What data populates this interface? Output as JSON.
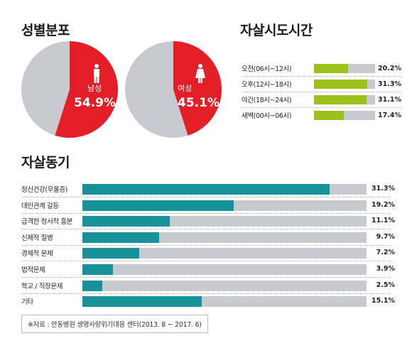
{
  "titles": {
    "gender": "성별분포",
    "time": "자살시도시간",
    "motive": "자살동기"
  },
  "colors": {
    "pie_highlight": "#e41e26",
    "pie_rest": "#c9c9d0",
    "time_bar": "#9bc21a",
    "motive_bar": "#17919a",
    "track": "#c9c9d0"
  },
  "chart_data": [
    {
      "type": "pie",
      "title": "성별분포",
      "slices": [
        {
          "label": "남성",
          "value": 54.9,
          "value_label": "54.9%",
          "icon": "male-person-icon"
        },
        {
          "label": "",
          "value": 45.1
        }
      ]
    },
    {
      "type": "pie",
      "slices": [
        {
          "label": "여성",
          "value": 45.1,
          "value_label": "45.1%",
          "icon": "female-person-icon"
        },
        {
          "label": "",
          "value": 54.9
        }
      ]
    },
    {
      "type": "bar",
      "orientation": "horizontal",
      "title": "자살시도시간",
      "categories": [
        "오전(06시~12시)",
        "오후(12시~18시)",
        "야간(18시~24시)",
        "새벽(00시~06시)"
      ],
      "values": [
        20.2,
        31.3,
        31.1,
        17.4
      ],
      "value_labels": [
        "20.2%",
        "31.3%",
        "31.1%",
        "17.4%"
      ],
      "xlim": [
        0,
        36
      ]
    },
    {
      "type": "bar",
      "orientation": "horizontal",
      "title": "자살동기",
      "categories": [
        "정신건강(우울증)",
        "대인관계 갈등",
        "급격한 정서적 흥분",
        "신체적 질병",
        "경제적 문제",
        "법적문제",
        "학교 / 직장문제",
        "기타"
      ],
      "values": [
        31.3,
        19.2,
        11.1,
        9.7,
        7.2,
        3.9,
        2.5,
        15.1
      ],
      "value_labels": [
        "31.3%",
        "19.2%",
        "11.1%",
        "9.7%",
        "7.2%",
        "3.9%",
        "2.5%",
        "15.1%"
      ],
      "xlim": [
        0,
        36
      ]
    }
  ],
  "source": "※자료 : 안동병원 생명사랑위기대응 센터(2013. 8 ~ 2017. 6)"
}
